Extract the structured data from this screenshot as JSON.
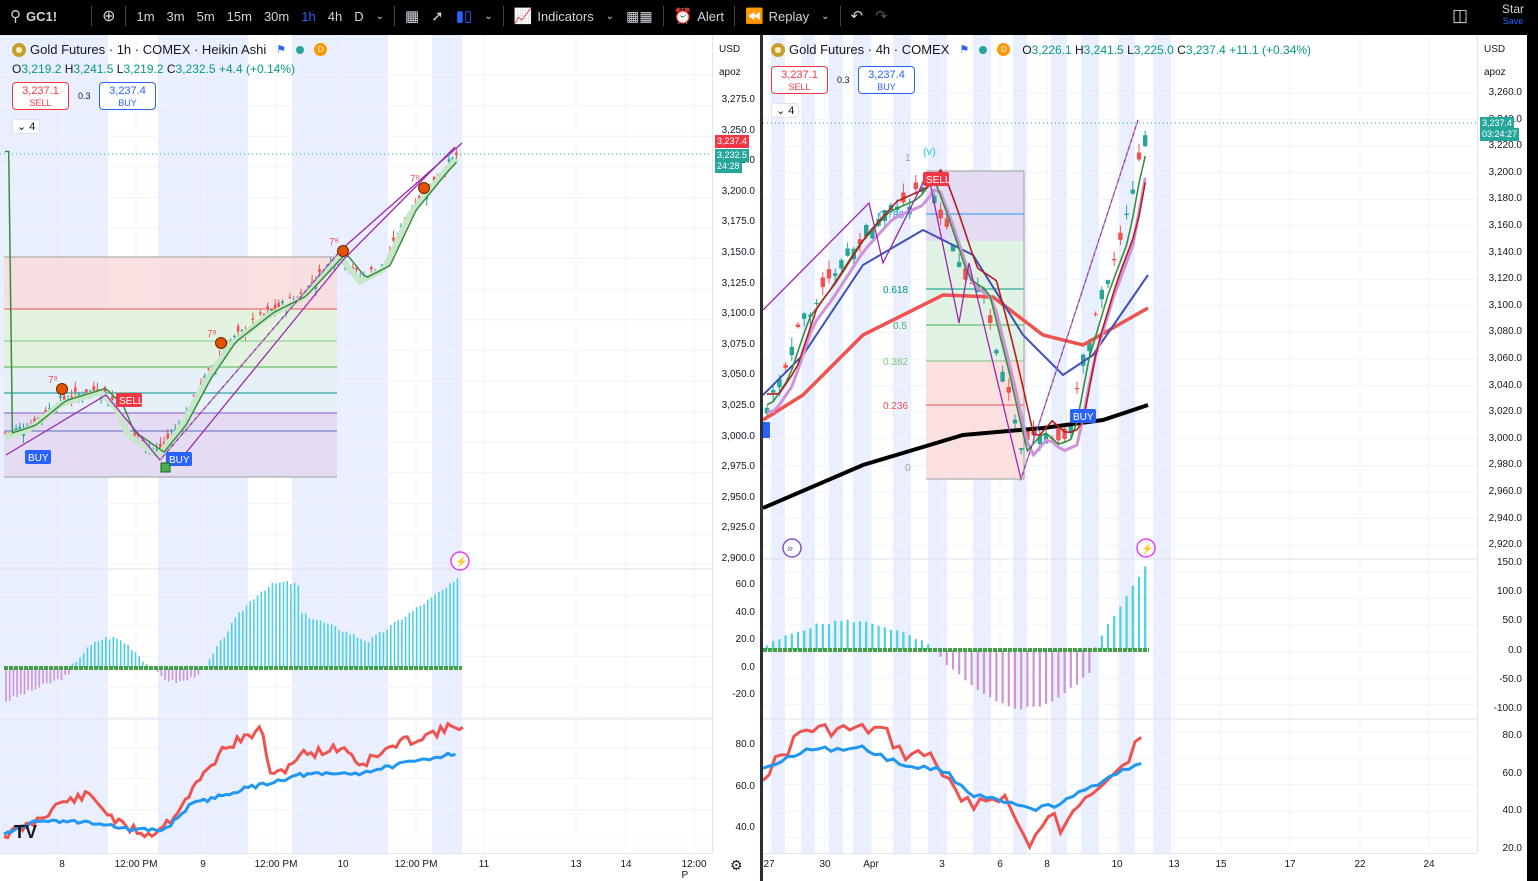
{
  "toolbar": {
    "symbol": "GC1!",
    "intervals": [
      "1m",
      "3m",
      "5m",
      "15m",
      "30m",
      "1h",
      "4h",
      "D"
    ],
    "active_interval": "1h",
    "indicators_label": "Indicators",
    "alert_label": "Alert",
    "replay_label": "Replay",
    "star_label": "Star",
    "save_label": "Save"
  },
  "left": {
    "title": "Gold Futures · 1h · COMEX · Heikin Ashi",
    "d_badge": "D",
    "ohlc": {
      "o": "3,219.2",
      "h": "3,241.5",
      "l": "3,219.2",
      "c": "3,232.5",
      "chg": "+4.4 (+0.14%)"
    },
    "sell_price": "3,237.1",
    "sell_label": "SELL",
    "buy_price": "3,237.4",
    "buy_label": "BUY",
    "spread": "0.3",
    "collapse": "4",
    "currency": "USD",
    "scale": "apoz",
    "price_ticks": [
      "3,275.0",
      "3,250.0",
      "3,225.0",
      "3,200.0",
      "3,175.0",
      "3,150.0",
      "3,125.0",
      "3,100.0",
      "3,075.0",
      "3,050.0",
      "3,025.0",
      "3,000.0",
      "2,975.0",
      "2,950.0",
      "2,925.0",
      "2,900.0"
    ],
    "price_tag_red": "3,237.4",
    "price_tag_green": "3,232.5",
    "price_tag_time": "24:28",
    "osc_ticks": [
      "60.0",
      "40.0",
      "20.0",
      "0.0",
      "-20.0"
    ],
    "rsi_ticks": [
      "80.0",
      "60.0",
      "40.0"
    ],
    "time_labels": [
      "8",
      "12:00 PM",
      "9",
      "12:00 PM",
      "10",
      "12:00 PM",
      "11",
      "13",
      "14",
      "12:00 P"
    ],
    "signals": {
      "buy1": "BUY",
      "sell": "SELL",
      "buy2": "BUY"
    },
    "seven_eight": "7⁸"
  },
  "right": {
    "title": "Gold Futures · 4h · COMEX",
    "d_badge": "D",
    "ohlc": {
      "o": "3,226.1",
      "h": "3,241.5",
      "l": "3,225.0",
      "c": "3,237.4",
      "chg": "+11.1 (+0.34%)"
    },
    "sell_price": "3,237.1",
    "sell_label": "SELL",
    "buy_price": "3,237.4",
    "buy_label": "BUY",
    "spread": "0.3",
    "collapse": "4",
    "currency": "USD",
    "scale": "apoz",
    "price_ticks": [
      "3,260.0",
      "3,240.0",
      "3,220.0",
      "3,200.0",
      "3,180.0",
      "3,160.0",
      "3,140.0",
      "3,120.0",
      "3,100.0",
      "3,080.0",
      "3,060.0",
      "3,040.0",
      "3,020.0",
      "3,000.0",
      "2,980.0",
      "2,960.0",
      "2,940.0",
      "2,920.0"
    ],
    "price_tag": "3,237.4",
    "price_tag_time": "03:24:27",
    "osc_ticks": [
      "150.0",
      "100.0",
      "50.0",
      "0.0",
      "-50.0",
      "-100.0"
    ],
    "rsi_ticks": [
      "80.0",
      "60.0",
      "40.0",
      "20.0"
    ],
    "time_labels": [
      "27",
      "30",
      "Apr",
      "3",
      "6",
      "8",
      "10",
      "13",
      "15",
      "17",
      "22",
      "24"
    ],
    "fib_levels": [
      "1",
      "0.786",
      "0.618",
      "0.5",
      "0.382",
      "0.236",
      "0"
    ],
    "wave_label": "(v)",
    "signals": {
      "sell": "SELL",
      "buy": "BUY"
    }
  }
}
